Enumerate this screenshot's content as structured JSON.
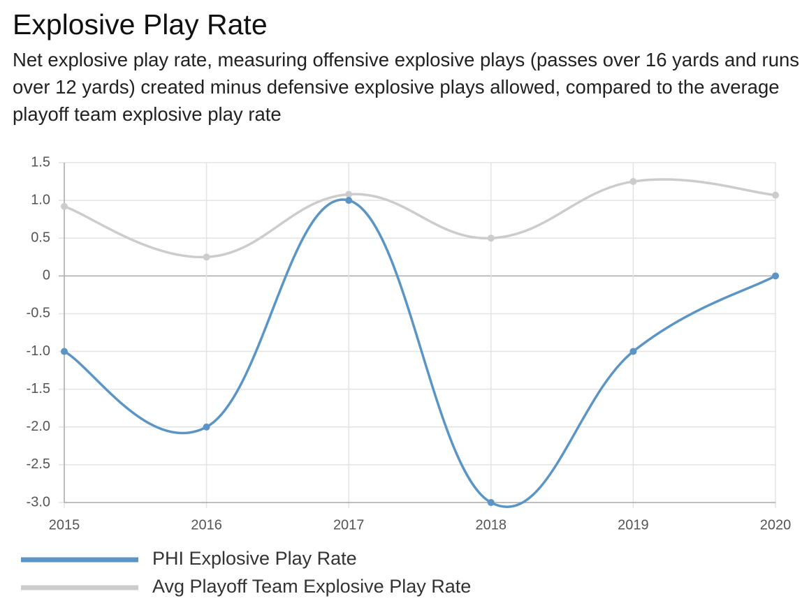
{
  "chart_data": {
    "type": "line",
    "title": "Explosive Play Rate",
    "subtitle": "Net explosive play rate, measuring offensive explosive plays (passes over 16 yards and runs over 12 yards) created minus defensive explosive plays allowed, compared to the average playoff team explosive play rate",
    "x": [
      2015,
      2016,
      2017,
      2018,
      2019,
      2020
    ],
    "xlim": [
      2015,
      2020
    ],
    "xticks": [
      2015,
      2016,
      2017,
      2018,
      2019,
      2020
    ],
    "ylim": [
      -3,
      1.5
    ],
    "yticks": [
      1.5,
      {
        "value": 1,
        "label": "1.0"
      },
      0.5,
      0,
      -0.5,
      {
        "value": -1,
        "label": "-1.0"
      },
      -1.5,
      {
        "value": -2,
        "label": "-2.0"
      },
      -2.5,
      {
        "value": -3,
        "label": "-3.0"
      }
    ],
    "grid": true,
    "series": [
      {
        "name": "PHI Explosive Play Rate",
        "color": "#5b95c6",
        "values": [
          -1,
          -2,
          1,
          -3,
          -1,
          0
        ]
      },
      {
        "name": "Avg Playoff Team Explosive Play Rate",
        "color": "#cccccc",
        "values": [
          0.92,
          0.25,
          1.08,
          0.5,
          1.25,
          1.07
        ]
      }
    ]
  }
}
